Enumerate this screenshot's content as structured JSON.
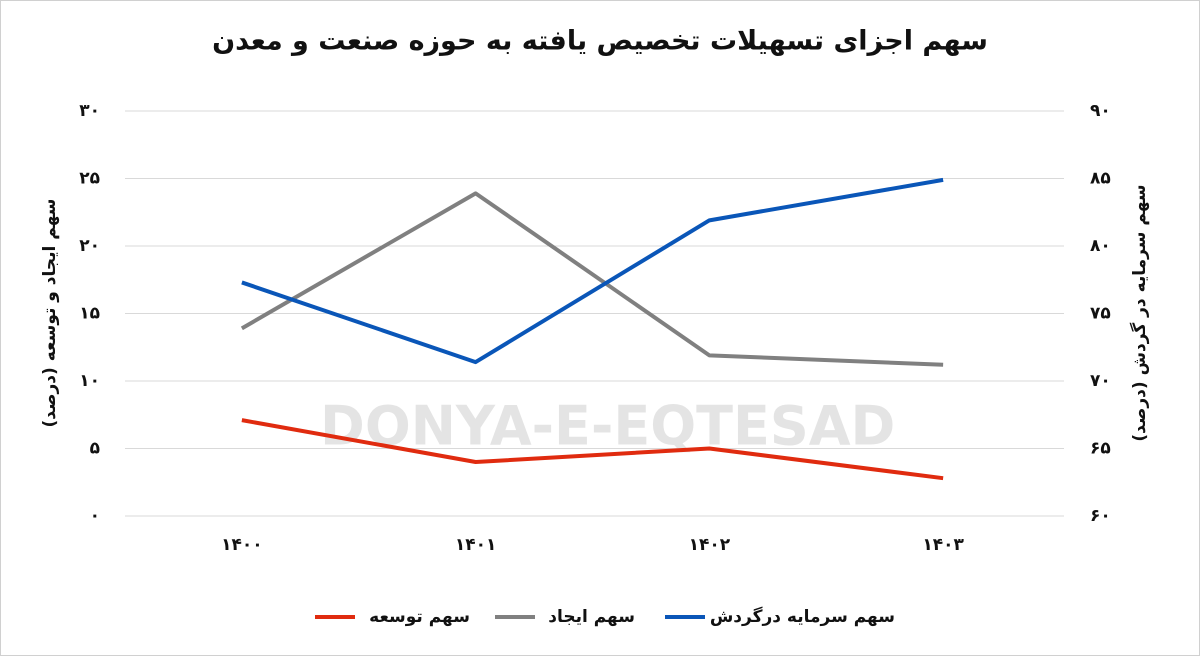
{
  "chart_data": {
    "type": "line",
    "title": "سهم اجزای تسهیلات تخصیص یافته به حوزه صنعت و معدن",
    "watermark": "DONYA-E-EQTESAD",
    "ylabel": "سهم ایجاد و توسعه (درصد)",
    "y2label": "سهم سرمایه در گردش (درصد)",
    "categories": [
      "۱۴۰۰",
      "۱۴۰۱",
      "۱۴۰۲",
      "۱۴۰۳"
    ],
    "ylim": [
      0,
      30
    ],
    "yticks": [
      {
        "value": 0,
        "label": "۰"
      },
      {
        "value": 5,
        "label": "۵"
      },
      {
        "value": 10,
        "label": "۱۰"
      },
      {
        "value": 15,
        "label": "۱۵"
      },
      {
        "value": 20,
        "label": "۲۰"
      },
      {
        "value": 25,
        "label": "۲۵"
      },
      {
        "value": 30,
        "label": "۳۰"
      }
    ],
    "y2lim": [
      60,
      90
    ],
    "y2ticks": [
      {
        "value": 60,
        "label": "۶۰"
      },
      {
        "value": 65,
        "label": "۶۵"
      },
      {
        "value": 70,
        "label": "۷۰"
      },
      {
        "value": 75,
        "label": "۷۵"
      },
      {
        "value": 80,
        "label": "۸۰"
      },
      {
        "value": 85,
        "label": "۸۵"
      },
      {
        "value": 90,
        "label": "۹۰"
      }
    ],
    "grid": true,
    "series": [
      {
        "name": "سهم توسعه",
        "color": "#e02b0f",
        "values": [
          7.1,
          4.0,
          5.0,
          2.8
        ]
      },
      {
        "name": "سهم ایجاد",
        "color": "#808080",
        "values": [
          13.9,
          23.9,
          11.9,
          11.2
        ]
      },
      {
        "name": "سهم سرمایه درگردش",
        "color": "#0a56b8",
        "axis": "y2",
        "values": [
          77.3,
          71.4,
          81.9,
          84.9
        ]
      }
    ]
  }
}
